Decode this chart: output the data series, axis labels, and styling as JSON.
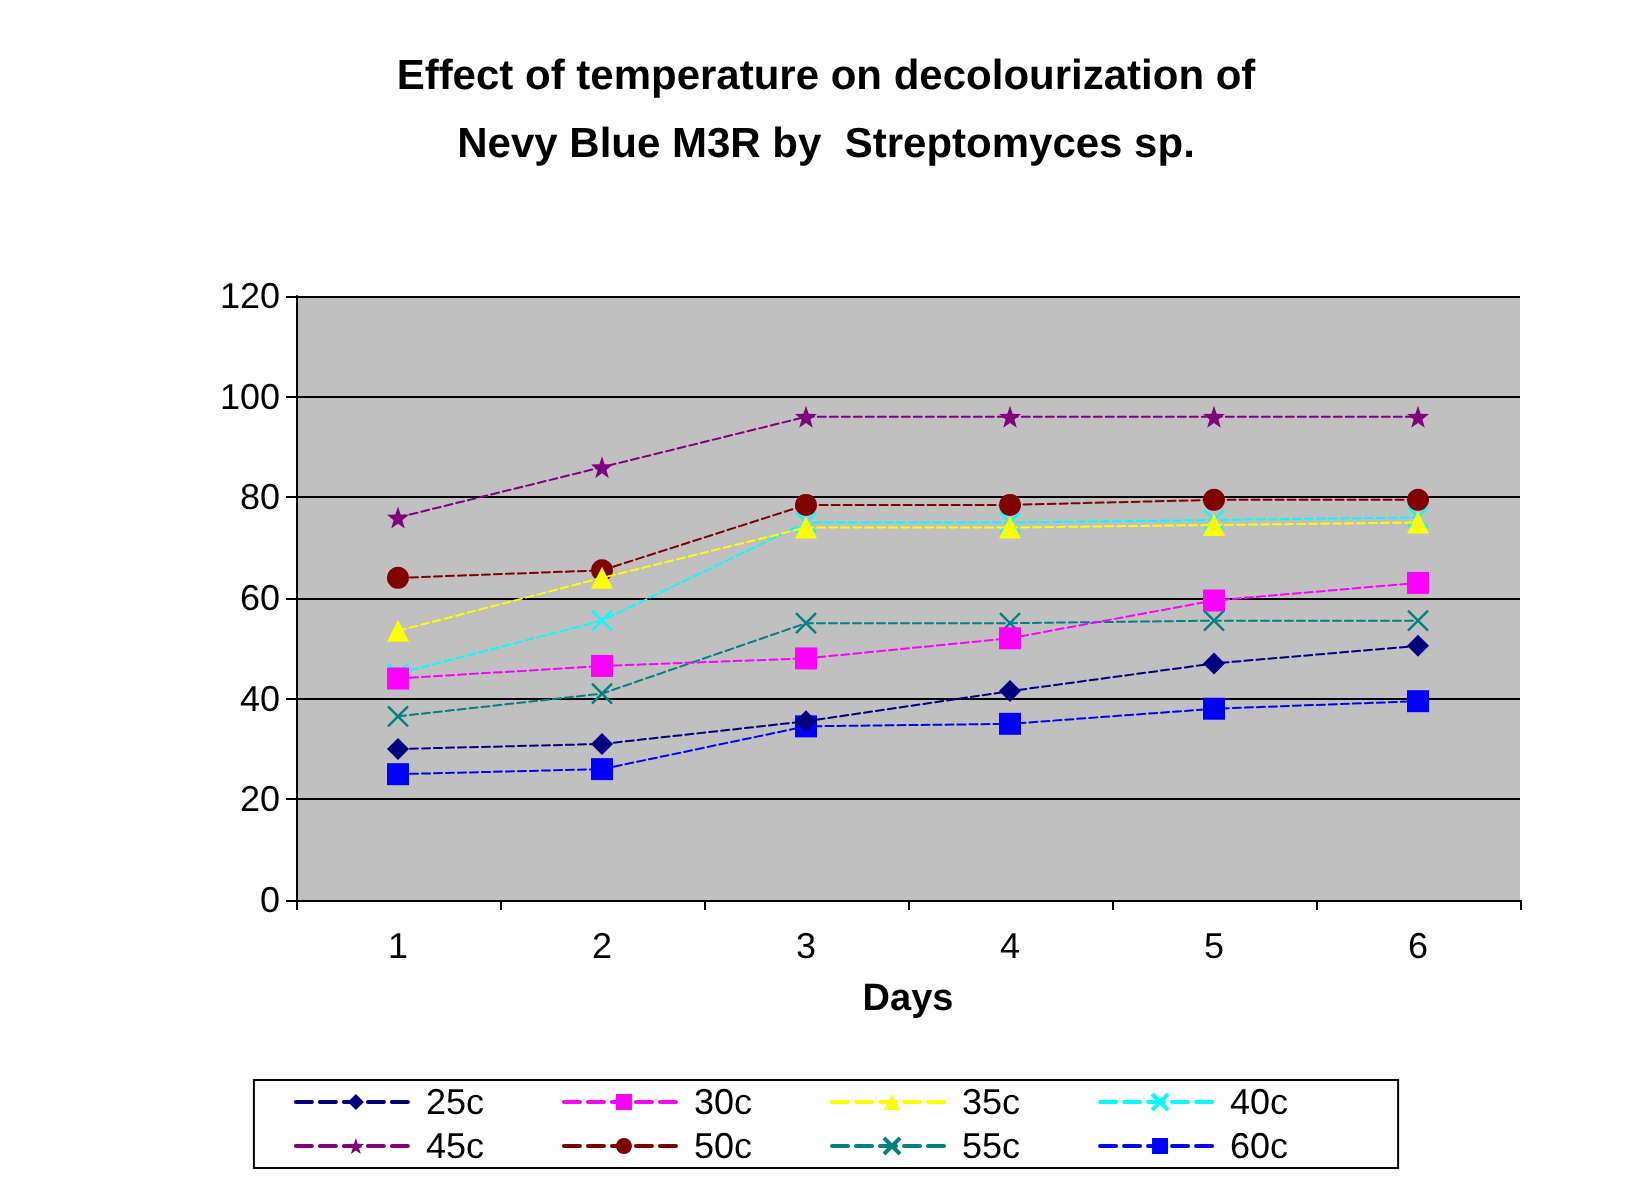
{
  "chart_data": {
    "type": "line",
    "title": "Effect of temperature on decolourization of\nNevy Blue M3R by  Streptomyces sp.",
    "xlabel": "Days",
    "categories": [
      "1",
      "2",
      "3",
      "4",
      "5",
      "6"
    ],
    "ylim": [
      0,
      120
    ],
    "yticks": [
      0,
      20,
      40,
      60,
      80,
      100,
      120
    ],
    "grid": "y",
    "legend": "bottom",
    "line_style": "dashed",
    "series": [
      {
        "name": "25c",
        "color": "#000080",
        "marker": "diamond",
        "values": [
          30,
          31,
          35.5,
          41.5,
          47,
          50.5
        ]
      },
      {
        "name": "30c",
        "color": "#ff00ff",
        "marker": "square",
        "values": [
          44,
          46.5,
          48,
          52,
          59.5,
          63
        ]
      },
      {
        "name": "35c",
        "color": "#ffff00",
        "marker": "triangle",
        "values": [
          53.5,
          64,
          74,
          74,
          74.5,
          75
        ]
      },
      {
        "name": "40c",
        "color": "#00ffff",
        "marker": "cross",
        "values": [
          45,
          55.5,
          75,
          75,
          75.5,
          76
        ]
      },
      {
        "name": "45c",
        "color": "#800080",
        "marker": "star",
        "values": [
          76,
          86,
          96,
          96,
          96,
          96
        ]
      },
      {
        "name": "50c",
        "color": "#800000",
        "marker": "circle",
        "values": [
          64,
          65.5,
          78.5,
          78.5,
          79.5,
          79.5
        ]
      },
      {
        "name": "55c",
        "color": "#008080",
        "marker": "cross",
        "values": [
          36.5,
          41,
          55,
          55,
          55.5,
          55.5
        ]
      },
      {
        "name": "60c",
        "color": "#0000ff",
        "marker": "square",
        "values": [
          25,
          26,
          34.5,
          35,
          38,
          39.5
        ]
      }
    ]
  }
}
